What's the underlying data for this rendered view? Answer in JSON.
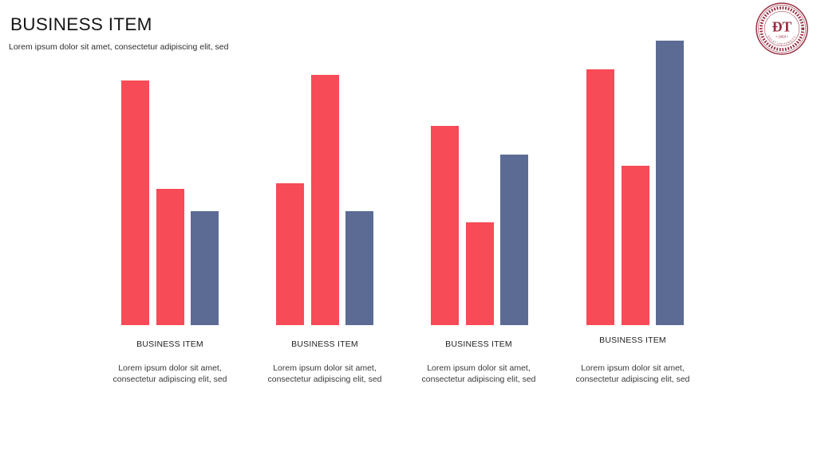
{
  "slide": {
    "title": "BUSINESS ITEM",
    "subtitle": "Lorem ipsum dolor sit amet, consectetur adipiscing elit, sed"
  },
  "logo": {
    "name": "university-seal",
    "monogram": "ĐT",
    "year": "• 1958 •",
    "rim_text": "DALAT UNIVERSITY",
    "color": "#992F42"
  },
  "colors": {
    "red": "#F74B57",
    "slate": "#5B6B94",
    "title_text": "#161616",
    "body_text": "#3a3a3a"
  },
  "chart_data": {
    "type": "bar",
    "title": "BUSINESS ITEM",
    "categories": [
      "BUSINESS ITEM",
      "BUSINESS ITEM",
      "BUSINESS ITEM",
      "BUSINESS ITEM"
    ],
    "series": [
      {
        "name": "red-series-1",
        "color": "#F74B57",
        "values": [
          86,
          50,
          70,
          90
        ]
      },
      {
        "name": "red-series-2",
        "color": "#F74B57",
        "values": [
          48,
          88,
          36,
          56
        ]
      },
      {
        "name": "slate-series",
        "color": "#5B6B94",
        "values": [
          40,
          40,
          60,
          100
        ]
      }
    ],
    "ylim": [
      0,
      100
    ],
    "grid": false,
    "legend": false,
    "axes": "hidden"
  },
  "groups": [
    {
      "label": "BUSINESS ITEM",
      "description": "Lorem ipsum dolor sit amet, consectetur adipiscing elit, sed",
      "bars": [
        86,
        48,
        40
      ]
    },
    {
      "label": "BUSINESS ITEM",
      "description": "Lorem ipsum dolor sit amet, consectetur adipiscing elit, sed",
      "bars": [
        50,
        88,
        40
      ]
    },
    {
      "label": "BUSINESS ITEM",
      "description": "Lorem ipsum dolor sit amet, consectetur adipiscing elit, sed",
      "bars": [
        70,
        36,
        60
      ]
    },
    {
      "label": "BUSINESS ITEM",
      "description": "Lorem ipsum dolor sit amet, consectetur adipiscing elit, sed",
      "bars": [
        90,
        56,
        100
      ]
    }
  ]
}
